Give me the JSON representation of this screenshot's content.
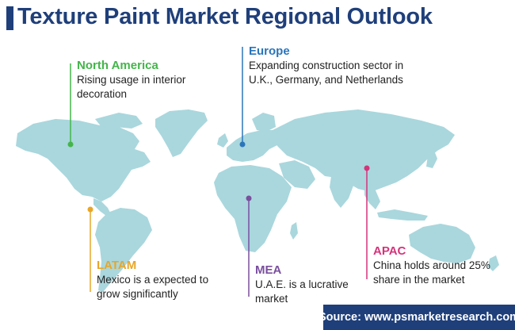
{
  "title": "Texture Paint Market Regional Outlook",
  "colors": {
    "title": "#1f3f7a",
    "land": "#a9d7dd",
    "north_america": "#43b549",
    "europe": "#2a75bb",
    "latam": "#e8a628",
    "mea": "#7a4f9e",
    "apac": "#d6337a",
    "source_bg": "#1f3f7a"
  },
  "regions": {
    "north_america": {
      "name": "North America",
      "lines": [
        "Rising usage in interior",
        "decoration"
      ]
    },
    "europe": {
      "name": "Europe",
      "lines": [
        "Expanding construction sector in",
        "U.K., Germany, and Netherlands"
      ]
    },
    "latam": {
      "name": "LATAM",
      "lines": [
        "Mexico is a expected to",
        "grow significantly"
      ]
    },
    "mea": {
      "name": "MEA",
      "lines": [
        "U.A.E. is a lucrative",
        "market"
      ]
    },
    "apac": {
      "name": "APAC",
      "lines": [
        "China holds around 25%",
        "share in the market"
      ]
    }
  },
  "source": "Source: www.psmarketresearch.com"
}
